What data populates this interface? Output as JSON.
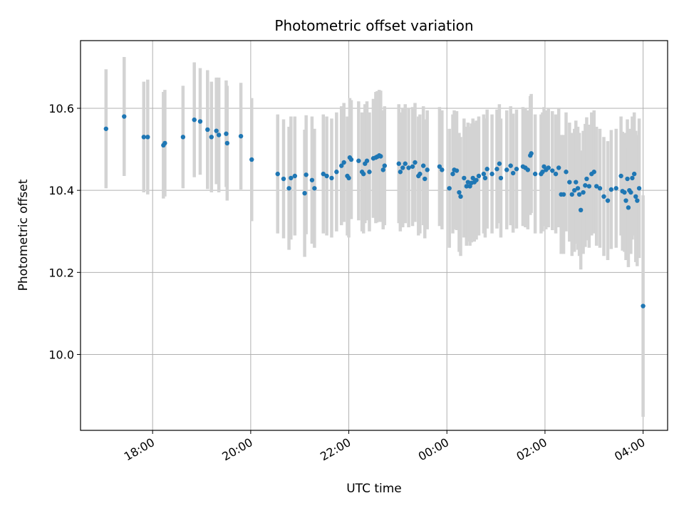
{
  "chart_data": {
    "type": "scatter",
    "title": "Photometric offset variation",
    "xlabel": "UTC time",
    "ylabel": "Photometric offset",
    "grid": true,
    "error_bars": true,
    "ylim": [
      9.815,
      10.765
    ],
    "xlim_hours": [
      16.53,
      28.5
    ],
    "x_ticks": [
      {
        "hour": 18,
        "label": "18:00"
      },
      {
        "hour": 20,
        "label": "20:00"
      },
      {
        "hour": 22,
        "label": "22:00"
      },
      {
        "hour": 24,
        "label": "00:00"
      },
      {
        "hour": 26,
        "label": "02:00"
      },
      {
        "hour": 28,
        "label": "04:00"
      }
    ],
    "y_ticks": [
      {
        "value": 10.0,
        "label": "10.0"
      },
      {
        "value": 10.2,
        "label": "10.2"
      },
      {
        "value": 10.4,
        "label": "10.4"
      },
      {
        "value": 10.6,
        "label": "10.6"
      }
    ],
    "colors": {
      "points": "#1f77b4",
      "errorbars": "#d3d3d3",
      "grid": "#b0b0b0"
    },
    "points": [
      [
        17.05,
        10.55,
        0.145
      ],
      [
        17.42,
        10.58,
        0.145
      ],
      [
        17.82,
        10.53,
        0.135
      ],
      [
        17.9,
        10.53,
        0.14
      ],
      [
        18.22,
        10.51,
        0.13
      ],
      [
        18.25,
        10.515,
        0.13
      ],
      [
        18.62,
        10.53,
        0.125
      ],
      [
        18.85,
        10.572,
        0.14
      ],
      [
        18.97,
        10.568,
        0.13
      ],
      [
        19.12,
        10.548,
        0.145
      ],
      [
        19.2,
        10.53,
        0.135
      ],
      [
        19.3,
        10.545,
        0.13
      ],
      [
        19.35,
        10.535,
        0.14
      ],
      [
        19.5,
        10.538,
        0.13
      ],
      [
        19.52,
        10.515,
        0.14
      ],
      [
        19.8,
        10.532,
        0.13
      ],
      [
        20.02,
        10.475,
        0.15
      ],
      [
        20.55,
        10.44,
        0.145
      ],
      [
        20.67,
        10.428,
        0.145
      ],
      [
        20.78,
        10.405,
        0.15
      ],
      [
        20.82,
        10.43,
        0.15
      ],
      [
        20.9,
        10.435,
        0.145
      ],
      [
        21.1,
        10.393,
        0.155
      ],
      [
        21.13,
        10.438,
        0.145
      ],
      [
        21.25,
        10.425,
        0.155
      ],
      [
        21.3,
        10.405,
        0.145
      ],
      [
        21.48,
        10.44,
        0.145
      ],
      [
        21.55,
        10.435,
        0.145
      ],
      [
        21.65,
        10.43,
        0.145
      ],
      [
        21.75,
        10.445,
        0.145
      ],
      [
        21.85,
        10.46,
        0.145
      ],
      [
        21.9,
        10.468,
        0.145
      ],
      [
        21.97,
        10.435,
        0.145
      ],
      [
        22.0,
        10.43,
        0.145
      ],
      [
        22.02,
        10.48,
        0.145
      ],
      [
        22.05,
        10.475,
        0.145
      ],
      [
        22.2,
        10.472,
        0.145
      ],
      [
        22.27,
        10.445,
        0.145
      ],
      [
        22.3,
        10.44,
        0.145
      ],
      [
        22.33,
        10.465,
        0.145
      ],
      [
        22.37,
        10.472,
        0.145
      ],
      [
        22.42,
        10.445,
        0.145
      ],
      [
        22.5,
        10.478,
        0.145
      ],
      [
        22.55,
        10.48,
        0.16
      ],
      [
        22.58,
        10.482,
        0.16
      ],
      [
        22.62,
        10.485,
        0.16
      ],
      [
        22.65,
        10.483,
        0.16
      ],
      [
        22.7,
        10.45,
        0.145
      ],
      [
        22.73,
        10.46,
        0.145
      ],
      [
        23.02,
        10.465,
        0.145
      ],
      [
        23.05,
        10.445,
        0.145
      ],
      [
        23.1,
        10.455,
        0.145
      ],
      [
        23.15,
        10.465,
        0.145
      ],
      [
        23.22,
        10.455,
        0.145
      ],
      [
        23.3,
        10.458,
        0.145
      ],
      [
        23.35,
        10.468,
        0.145
      ],
      [
        23.42,
        10.435,
        0.145
      ],
      [
        23.45,
        10.44,
        0.145
      ],
      [
        23.52,
        10.46,
        0.145
      ],
      [
        23.55,
        10.428,
        0.145
      ],
      [
        23.6,
        10.45,
        0.145
      ],
      [
        23.85,
        10.458,
        0.145
      ],
      [
        23.9,
        10.45,
        0.145
      ],
      [
        24.05,
        10.405,
        0.145
      ],
      [
        24.12,
        10.44,
        0.145
      ],
      [
        24.15,
        10.45,
        0.145
      ],
      [
        24.2,
        10.448,
        0.145
      ],
      [
        24.25,
        10.395,
        0.145
      ],
      [
        24.28,
        10.385,
        0.145
      ],
      [
        24.35,
        10.43,
        0.145
      ],
      [
        24.4,
        10.41,
        0.145
      ],
      [
        24.43,
        10.42,
        0.145
      ],
      [
        24.47,
        10.41,
        0.145
      ],
      [
        24.5,
        10.418,
        0.145
      ],
      [
        24.53,
        10.43,
        0.145
      ],
      [
        24.56,
        10.42,
        0.145
      ],
      [
        24.6,
        10.425,
        0.145
      ],
      [
        24.65,
        10.435,
        0.145
      ],
      [
        24.75,
        10.44,
        0.145
      ],
      [
        24.78,
        10.43,
        0.145
      ],
      [
        24.82,
        10.452,
        0.145
      ],
      [
        24.92,
        10.44,
        0.145
      ],
      [
        25.02,
        10.452,
        0.145
      ],
      [
        25.07,
        10.465,
        0.145
      ],
      [
        25.1,
        10.43,
        0.145
      ],
      [
        25.22,
        10.45,
        0.145
      ],
      [
        25.3,
        10.46,
        0.145
      ],
      [
        25.35,
        10.442,
        0.145
      ],
      [
        25.42,
        10.452,
        0.145
      ],
      [
        25.55,
        10.458,
        0.145
      ],
      [
        25.6,
        10.455,
        0.145
      ],
      [
        25.65,
        10.45,
        0.145
      ],
      [
        25.7,
        10.485,
        0.145
      ],
      [
        25.72,
        10.49,
        0.145
      ],
      [
        25.8,
        10.44,
        0.145
      ],
      [
        25.92,
        10.44,
        0.145
      ],
      [
        25.95,
        10.445,
        0.145
      ],
      [
        25.98,
        10.458,
        0.145
      ],
      [
        26.02,
        10.45,
        0.145
      ],
      [
        26.07,
        10.455,
        0.145
      ],
      [
        26.15,
        10.448,
        0.145
      ],
      [
        26.22,
        10.44,
        0.145
      ],
      [
        26.28,
        10.455,
        0.145
      ],
      [
        26.33,
        10.39,
        0.145
      ],
      [
        26.38,
        10.39,
        0.145
      ],
      [
        26.43,
        10.445,
        0.145
      ],
      [
        26.5,
        10.42,
        0.145
      ],
      [
        26.55,
        10.39,
        0.15
      ],
      [
        26.6,
        10.4,
        0.15
      ],
      [
        26.63,
        10.42,
        0.15
      ],
      [
        26.67,
        10.405,
        0.15
      ],
      [
        26.7,
        10.39,
        0.15
      ],
      [
        26.73,
        10.352,
        0.145
      ],
      [
        26.78,
        10.395,
        0.15
      ],
      [
        26.82,
        10.412,
        0.15
      ],
      [
        26.85,
        10.428,
        0.15
      ],
      [
        26.9,
        10.41,
        0.15
      ],
      [
        26.95,
        10.44,
        0.15
      ],
      [
        27.0,
        10.445,
        0.15
      ],
      [
        27.05,
        10.41,
        0.145
      ],
      [
        27.12,
        10.405,
        0.145
      ],
      [
        27.2,
        10.385,
        0.145
      ],
      [
        27.28,
        10.375,
        0.145
      ],
      [
        27.35,
        10.402,
        0.145
      ],
      [
        27.45,
        10.405,
        0.145
      ],
      [
        27.55,
        10.435,
        0.145
      ],
      [
        27.58,
        10.398,
        0.145
      ],
      [
        27.62,
        10.395,
        0.145
      ],
      [
        27.65,
        10.375,
        0.145
      ],
      [
        27.68,
        10.428,
        0.145
      ],
      [
        27.7,
        10.358,
        0.145
      ],
      [
        27.72,
        10.4,
        0.15
      ],
      [
        27.75,
        10.395,
        0.15
      ],
      [
        27.78,
        10.43,
        0.15
      ],
      [
        27.82,
        10.44,
        0.15
      ],
      [
        27.85,
        10.385,
        0.16
      ],
      [
        27.88,
        10.375,
        0.16
      ],
      [
        27.92,
        10.405,
        0.17
      ],
      [
        28.0,
        10.118,
        0.27
      ]
    ]
  }
}
